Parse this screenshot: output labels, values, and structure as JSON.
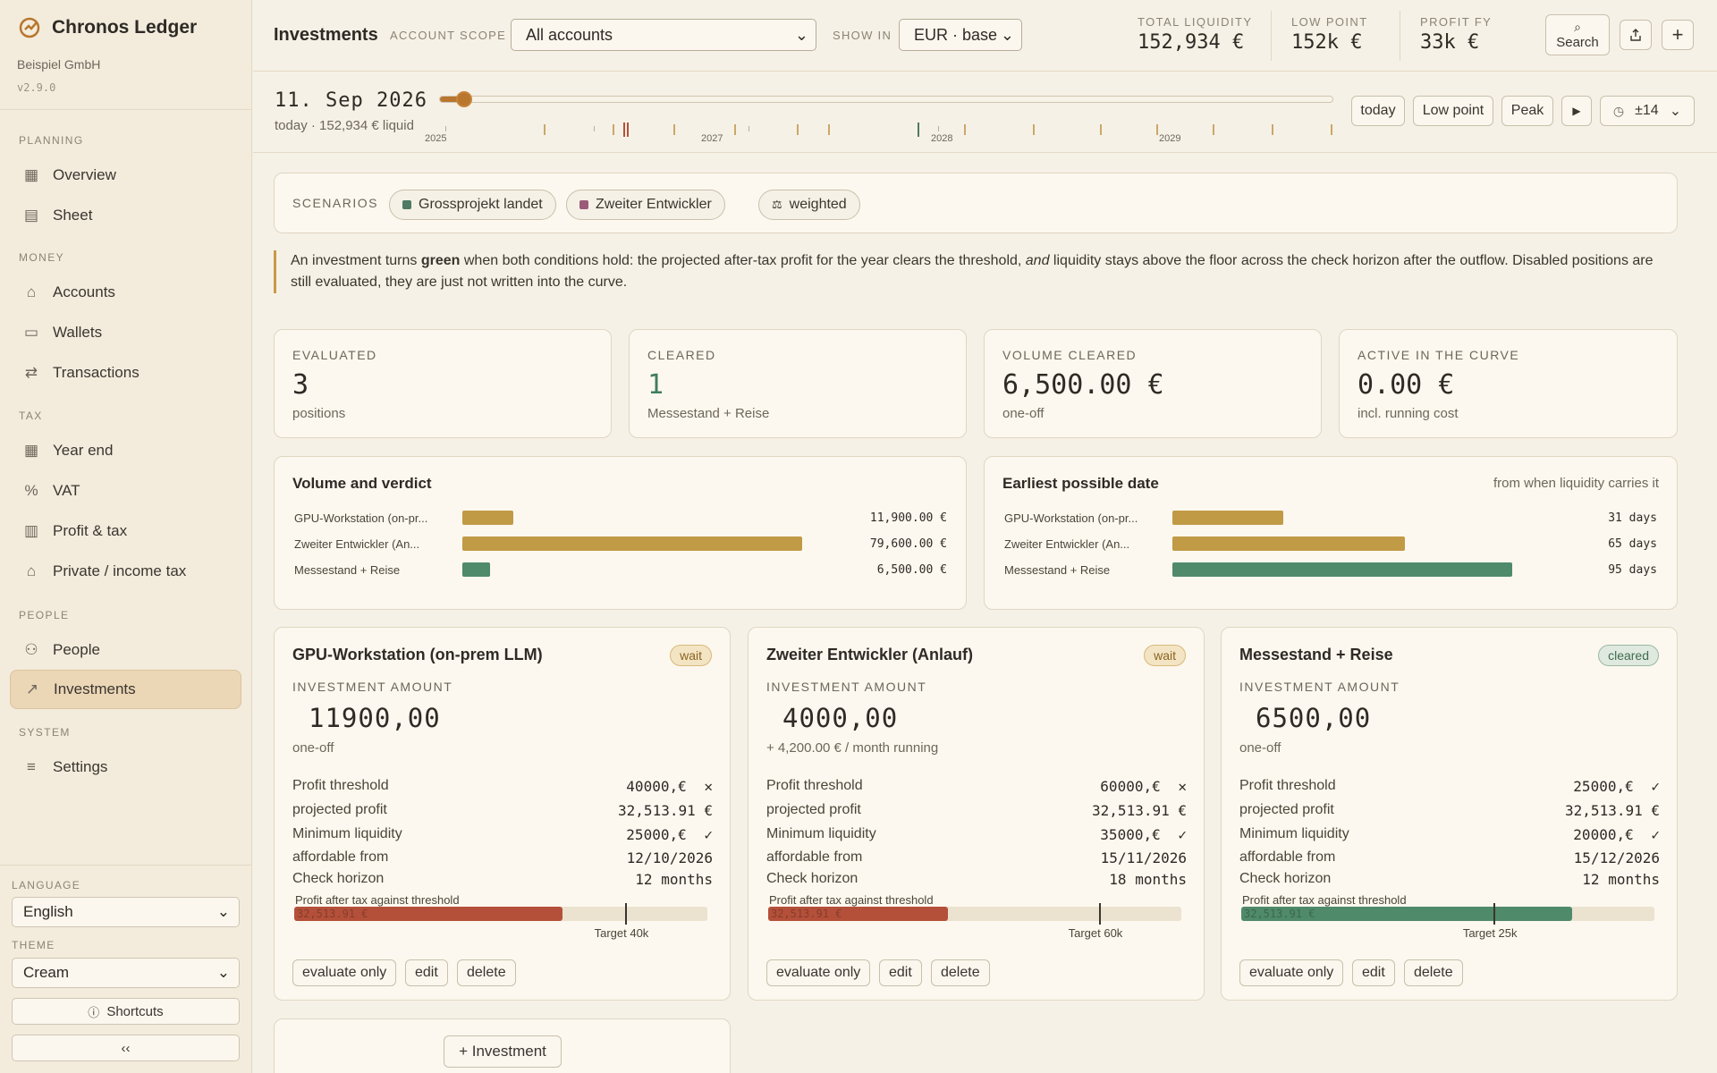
{
  "app": {
    "name": "Chronos Ledger",
    "company": "Beispiel GmbH",
    "version": "v2.9.0"
  },
  "sidebar": {
    "sections": [
      {
        "title": "PLANNING",
        "items": [
          {
            "label": "Overview",
            "icon": "grid-icon"
          },
          {
            "label": "Sheet",
            "icon": "table-icon"
          }
        ]
      },
      {
        "title": "MONEY",
        "items": [
          {
            "label": "Accounts",
            "icon": "bank-icon"
          },
          {
            "label": "Wallets",
            "icon": "wallet-icon"
          },
          {
            "label": "Transactions",
            "icon": "arrows-icon"
          }
        ]
      },
      {
        "title": "TAX",
        "items": [
          {
            "label": "Year end",
            "icon": "calendar-icon"
          },
          {
            "label": "VAT",
            "icon": "percent-icon"
          },
          {
            "label": "Profit & tax",
            "icon": "bar-chart-icon"
          },
          {
            "label": "Private / income tax",
            "icon": "home-icon"
          }
        ]
      },
      {
        "title": "PEOPLE",
        "items": [
          {
            "label": "People",
            "icon": "people-icon"
          },
          {
            "label": "Investments",
            "icon": "trend-icon",
            "active": true
          }
        ]
      },
      {
        "title": "SYSTEM",
        "items": [
          {
            "label": "Settings",
            "icon": "sliders-icon"
          }
        ]
      }
    ],
    "language_label": "LANGUAGE",
    "language_value": "English",
    "theme_label": "THEME",
    "theme_value": "Cream",
    "shortcuts_label": "Shortcuts",
    "collapse_label": "‹‹"
  },
  "header": {
    "title": "Investments",
    "scope_label": "ACCOUNT SCOPE",
    "scope_value": "All accounts",
    "show_label": "SHOW IN",
    "show_value": "EUR · base",
    "kpis": [
      {
        "label": "TOTAL LIQUIDITY",
        "value": "152,934 €"
      },
      {
        "label": "LOW POINT",
        "value": "152k €"
      },
      {
        "label": "PROFIT FY",
        "value": "33k €"
      }
    ],
    "search_label": "Search"
  },
  "timeline": {
    "date": "11. Sep 2026",
    "sub": "today · 152,934 € liquid",
    "position": 0.02,
    "years": [
      "2025",
      "2027",
      "2028",
      "2029"
    ],
    "buttons": {
      "today": "today",
      "low": "Low point",
      "peak": "Peak",
      "range": "±14"
    }
  },
  "scenarios": {
    "label": "SCENARIOS",
    "chips": [
      {
        "label": "Grossprojekt landet",
        "color": "#4f7a63"
      },
      {
        "label": "Zweiter Entwickler",
        "color": "#9a5a78"
      },
      {
        "label": "weighted",
        "color": ""
      }
    ]
  },
  "note": {
    "pre": "An investment turns ",
    "bold": "green",
    "mid": " when both conditions hold: the projected after-tax profit for the year clears the threshold, ",
    "em": "and",
    "post": " liquidity stays above the floor across the check horizon after the outflow. Disabled positions are still evaluated, they are just not written into the curve."
  },
  "stats": [
    {
      "label": "EVALUATED",
      "value": "3",
      "sub": "positions"
    },
    {
      "label": "CLEARED",
      "value": "1",
      "sub": "Messestand + Reise"
    },
    {
      "label": "VOLUME CLEARED",
      "value": "6,500.00 €",
      "sub": "one-off"
    },
    {
      "label": "ACTIVE IN THE CURVE",
      "value": "0.00 €",
      "sub": "incl. running cost"
    }
  ],
  "volume_panel": {
    "title": "Volume and verdict",
    "rows": [
      {
        "name": "GPU-Workstation (on-pr...",
        "value": "11,900.00 €",
        "amount": 11900,
        "color": "#c19a46"
      },
      {
        "name": "Zweiter Entwickler (An...",
        "value": "79,600.00 €",
        "amount": 79600,
        "color": "#c19a46"
      },
      {
        "name": "Messestand + Reise",
        "value": "6,500.00 €",
        "amount": 6500,
        "color": "#4f8a6a"
      }
    ]
  },
  "date_panel": {
    "title": "Earliest possible date",
    "note": "from when liquidity carries it",
    "rows": [
      {
        "name": "GPU-Workstation (on-pr...",
        "value": "31 days",
        "days": 31,
        "color": "#c19a46"
      },
      {
        "name": "Zweiter Entwickler (An...",
        "value": "65 days",
        "days": 65,
        "color": "#c19a46"
      },
      {
        "name": "Messestand + Reise",
        "value": "95 days",
        "days": 95,
        "color": "#4f8a6a"
      }
    ]
  },
  "investments": [
    {
      "title": "GPU-Workstation (on-prem LLM)",
      "status": "wait",
      "amount_label": "INVESTMENT AMOUNT",
      "amount": "11900,00",
      "sub": "one-off",
      "rows": [
        {
          "k": "Profit threshold",
          "v": "40000,€",
          "state": "fail"
        },
        {
          "k": "projected profit",
          "v": "32,513.91 €",
          "state": ""
        },
        {
          "k": "Minimum liquidity",
          "v": "25000,€",
          "state": "ok"
        },
        {
          "k": "affordable from",
          "v": "12/10/2026",
          "state": ""
        },
        {
          "k": "Check horizon",
          "v": "12 months",
          "state": ""
        }
      ],
      "progress_label": "Profit after tax against threshold",
      "progress_inner": "32,513.91 €",
      "progress_fill": 0.65,
      "target_pos": 0.8,
      "target_label": "Target 40k",
      "fill_color": "#b4503a",
      "actions": [
        "evaluate only",
        "edit",
        "delete"
      ]
    },
    {
      "title": "Zweiter Entwickler (Anlauf)",
      "status": "wait",
      "amount_label": "INVESTMENT AMOUNT",
      "amount": "4000,00",
      "sub": "+ 4,200.00 € / month running",
      "rows": [
        {
          "k": "Profit threshold",
          "v": "60000,€",
          "state": "fail"
        },
        {
          "k": "projected profit",
          "v": "32,513.91 €",
          "state": ""
        },
        {
          "k": "Minimum liquidity",
          "v": "35000,€",
          "state": "ok"
        },
        {
          "k": "affordable from",
          "v": "15/11/2026",
          "state": ""
        },
        {
          "k": "Check horizon",
          "v": "18 months",
          "state": ""
        }
      ],
      "progress_label": "Profit after tax against threshold",
      "progress_inner": "32,513.91 €",
      "progress_fill": 0.435,
      "target_pos": 0.8,
      "target_label": "Target 60k",
      "fill_color": "#b4503a",
      "actions": [
        "evaluate only",
        "edit",
        "delete"
      ]
    },
    {
      "title": "Messestand + Reise",
      "status": "cleared",
      "amount_label": "INVESTMENT AMOUNT",
      "amount": "6500,00",
      "sub": "one-off",
      "rows": [
        {
          "k": "Profit threshold",
          "v": "25000,€",
          "state": "ok"
        },
        {
          "k": "projected profit",
          "v": "32,513.91 €",
          "state": ""
        },
        {
          "k": "Minimum liquidity",
          "v": "20000,€",
          "state": "ok"
        },
        {
          "k": "affordable from",
          "v": "15/12/2026",
          "state": ""
        },
        {
          "k": "Check horizon",
          "v": "12 months",
          "state": ""
        }
      ],
      "progress_label": "Profit after tax against threshold",
      "progress_inner": "32,513.91 €",
      "progress_fill": 0.8,
      "target_pos": 0.61,
      "target_label": "Target 25k",
      "fill_color": "#4f8a6a",
      "actions": [
        "evaluate only",
        "edit",
        "delete"
      ]
    }
  ],
  "add_label": "+ Investment",
  "colors": {
    "accent": "#b8762e",
    "ok": "#3f7c5c",
    "fail": "#b4503a",
    "active_bg": "#ebd6b6"
  }
}
